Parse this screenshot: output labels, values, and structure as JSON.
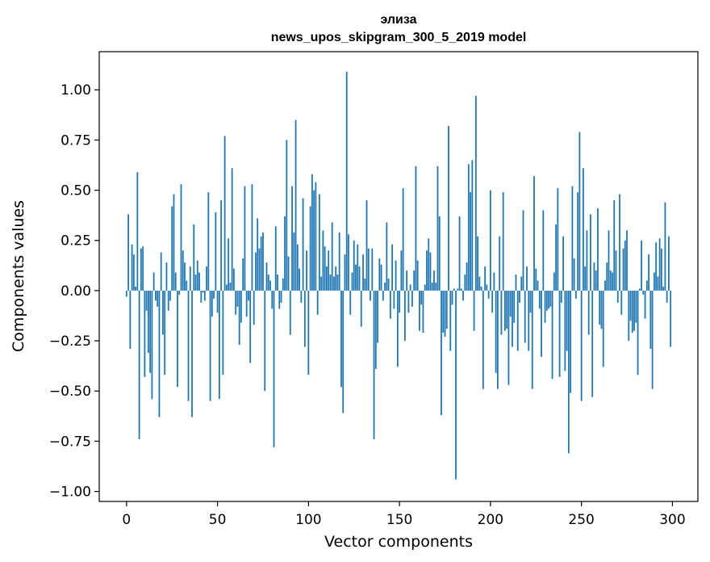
{
  "chart_data": {
    "type": "bar",
    "title": "элиза",
    "subtitle": "news_upos_skipgram_300_5_2019 model",
    "xlabel": "Vector components",
    "ylabel": "Components values",
    "xlim": [
      -15,
      314
    ],
    "ylim": [
      -1.05,
      1.19
    ],
    "xticks": [
      0,
      50,
      100,
      150,
      200,
      250,
      300
    ],
    "yticks": [
      -1.0,
      -0.75,
      -0.5,
      -0.25,
      0.0,
      0.25,
      0.5,
      0.75,
      1.0
    ],
    "ytick_labels": [
      "−1.00",
      "−0.75",
      "−0.50",
      "−0.25",
      "0.00",
      "0.25",
      "0.50",
      "0.75",
      "1.00"
    ],
    "bar_color": "#1f77b4",
    "grid": false,
    "values": [
      -0.03,
      0.38,
      -0.29,
      0.23,
      0.18,
      0.02,
      0.59,
      -0.74,
      0.21,
      0.22,
      -0.43,
      -0.1,
      -0.31,
      -0.41,
      -0.54,
      0.09,
      -0.05,
      -0.08,
      -0.63,
      0.19,
      -0.22,
      -0.42,
      0.14,
      -0.1,
      -0.05,
      0.42,
      0.48,
      0.09,
      -0.48,
      -0.02,
      0.53,
      0.2,
      0.14,
      0.05,
      -0.55,
      0.12,
      -0.63,
      0.33,
      0.08,
      0.15,
      0.09,
      -0.06,
      -0.01,
      -0.05,
      0.12,
      0.49,
      -0.55,
      -0.13,
      -0.04,
      0.39,
      -0.11,
      -0.54,
      0.45,
      -0.42,
      0.77,
      0.03,
      0.26,
      0.04,
      0.61,
      0.11,
      -0.12,
      -0.08,
      -0.27,
      -0.16,
      0.16,
      0.52,
      -0.13,
      -0.05,
      -0.36,
      0.53,
      -0.17,
      0.19,
      0.36,
      0.21,
      0.27,
      0.29,
      -0.5,
      0.14,
      0.08,
      0.05,
      -0.09,
      -0.78,
      0.32,
      0.08,
      -0.09,
      -0.06,
      0.06,
      0.37,
      0.75,
      0.17,
      -0.22,
      0.52,
      0.29,
      0.85,
      0.23,
      0.11,
      -0.06,
      0.46,
      -0.28,
      0.2,
      -0.42,
      0.42,
      0.58,
      0.5,
      0.54,
      -0.12,
      0.48,
      0.07,
      0.3,
      0.22,
      0.12,
      0.2,
      0.08,
      0.34,
      0.07,
      0.12,
      0.08,
      0.29,
      -0.48,
      -0.61,
      0.18,
      1.09,
      0.28,
      -0.12,
      0.09,
      0.25,
      0.13,
      0.23,
      0.12,
      -0.18,
      0.18,
      0.06,
      0.45,
      0.21,
      -0.05,
      0.21,
      -0.74,
      -0.39,
      -0.26,
      0.16,
      0.13,
      -0.05,
      0.04,
      0.34,
      0.06,
      -0.14,
      0.23,
      -0.09,
      0.15,
      -0.38,
      -0.11,
      0.2,
      0.51,
      -0.25,
      0.1,
      -0.11,
      0.03,
      -0.08,
      0.1,
      0.62,
      0.15,
      -0.2,
      -0.07,
      -0.21,
      0.03,
      0.2,
      0.26,
      0.19,
      0.04,
      0.1,
      0.04,
      0.62,
      0.37,
      -0.62,
      -0.21,
      -0.23,
      -0.19,
      0.82,
      -0.3,
      -0.07,
      0.01,
      -0.94,
      0.01,
      0.37,
      0.01,
      -0.05,
      0.08,
      0.14,
      0.63,
      0.49,
      0.65,
      -0.2,
      0.97,
      0.27,
      0.07,
      0.02,
      -0.49,
      0.12,
      0.03,
      -0.04,
      0.5,
      -0.11,
      0.09,
      -0.41,
      -0.49,
      0.27,
      -0.22,
      0.49,
      -0.2,
      -0.19,
      -0.47,
      -0.13,
      -0.28,
      -0.16,
      0.08,
      -0.3,
      -0.06,
      0.07,
      0.4,
      -0.26,
      0.12,
      -0.3,
      -0.11,
      -0.49,
      0.57,
      0.11,
      0.05,
      -0.09,
      -0.33,
      0.4,
      -0.16,
      -0.1,
      -0.09,
      -0.08,
      -0.44,
      0.09,
      0.33,
      0.51,
      -0.43,
      -0.06,
      0.27,
      -0.4,
      -0.3,
      -0.81,
      -0.51,
      0.52,
      0.16,
      -0.04,
      0.49,
      0.79,
      -0.55,
      0.61,
      0.12,
      0.3,
      -0.22,
      0.38,
      -0.53,
      0.14,
      0.1,
      0.41,
      -0.17,
      -0.19,
      -0.38,
      0.05,
      0.14,
      0.3,
      0.1,
      0.09,
      0.45,
      0.2,
      -0.06,
      0.48,
      -0.12,
      0.21,
      0.25,
      0.3,
      -0.25,
      -0.15,
      -0.21,
      -0.2,
      -0.16,
      -0.42,
      0.01,
      0.25,
      -0.02,
      -0.14,
      0.05,
      0.18,
      -0.29,
      -0.49,
      0.09,
      0.24,
      0.07,
      0.26,
      0.21,
      0.02,
      0.44,
      -0.06,
      0.27,
      -0.28
    ]
  }
}
